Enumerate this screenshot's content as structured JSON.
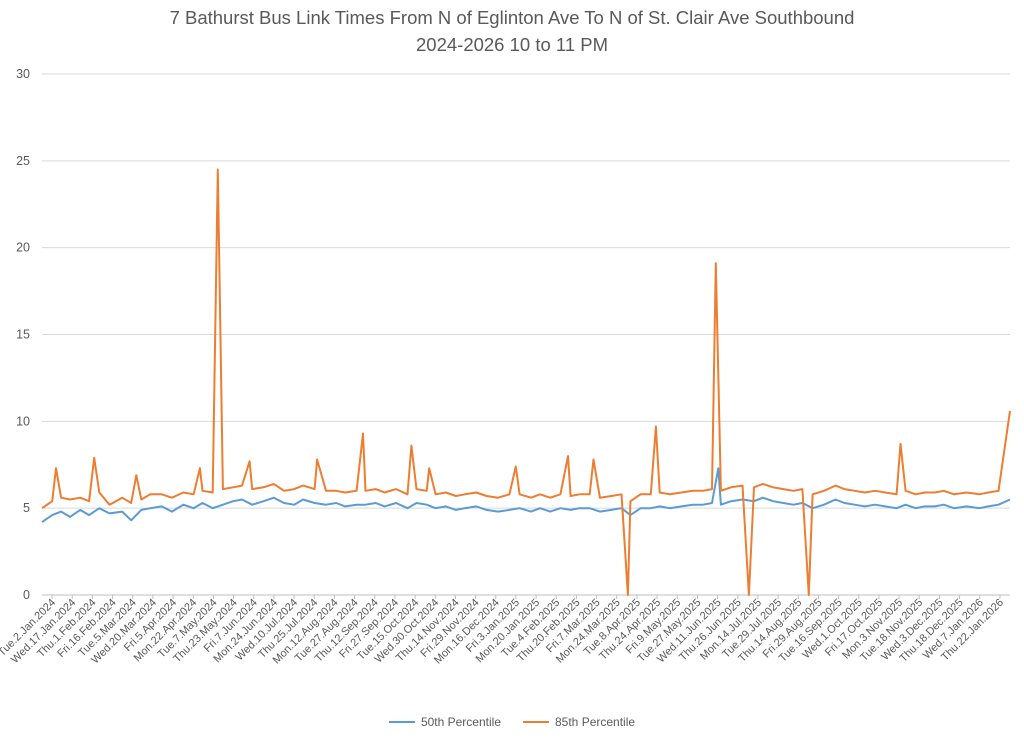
{
  "chart_data": {
    "type": "line",
    "title": "7 Bathurst Bus Link Times From N of Eglinton Ave To N of St. Clair Ave Southbound",
    "subtitle": "2024-2026 10 to 11 PM",
    "xlabel": "",
    "ylabel": "",
    "ylim": [
      0,
      30
    ],
    "yticks": [
      0,
      5,
      10,
      15,
      20,
      25,
      30
    ],
    "grid": true,
    "legend_position": "bottom",
    "x_range": [
      "2024-01-02",
      "2026-01-31"
    ],
    "x_tick_labels": [
      "Tue.2.Jan.2024",
      "Wed.17.Jan.2024",
      "Thu.1.Feb.2024",
      "Fri.16.Feb.2024",
      "Tue.5.Mar.2024",
      "Wed.20.Mar.2024",
      "Fri.5.Apr.2024",
      "Mon.22.Apr.2024",
      "Tue.7.May.2024",
      "Thu.23.May.2024",
      "Fri.7.Jun.2024",
      "Mon.24.Jun.2024",
      "Wed.10.Jul.2024",
      "Thu.25.Jul.2024",
      "Mon.12.Aug.2024",
      "Tue.27.Aug.2024",
      "Thu.12.Sep.2024",
      "Fri.27.Sep.2024",
      "Tue.15.Oct.2024",
      "Wed.30.Oct.2024",
      "Thu.14.Nov.2024",
      "Fri.29.Nov.2024",
      "Mon.16.Dec.2024",
      "Fri.3.Jan.2025",
      "Mon.20.Jan.2025",
      "Tue.4.Feb.2025",
      "Thu.20.Feb.2025",
      "Fri.7.Mar.2025",
      "Mon.24.Mar.2025",
      "Tue.8.Apr.2025",
      "Thu.24.Apr.2025",
      "Fri.9.May.2025",
      "Tue.27.May.2025",
      "Wed.11.Jun.2025",
      "Thu.26.Jun.2025",
      "Mon.14.Jul.2025",
      "Tue.29.Jul.2025",
      "Thu.14.Aug.2025",
      "Fri.29.Aug.2025",
      "Tue.16.Sep.2025",
      "Wed.1.Oct.2025",
      "Fri.17.Oct.2025",
      "Mon.3.Nov.2025",
      "Tue.18.Nov.2025",
      "Wed.3.Dec.2025",
      "Thu.18.Dec.2025",
      "Wed.7.Jan.2026",
      "Thu.22.Jan.2026"
    ],
    "series": [
      {
        "name": "50th Percentile",
        "color": "#5B9BD5",
        "points": [
          [
            "2024-01-02",
            4.2
          ],
          [
            "2024-01-10",
            4.6
          ],
          [
            "2024-01-17",
            4.8
          ],
          [
            "2024-01-24",
            4.5
          ],
          [
            "2024-02-01",
            4.9
          ],
          [
            "2024-02-08",
            4.6
          ],
          [
            "2024-02-16",
            5.0
          ],
          [
            "2024-02-24",
            4.7
          ],
          [
            "2024-03-05",
            4.8
          ],
          [
            "2024-03-12",
            4.3
          ],
          [
            "2024-03-20",
            4.9
          ],
          [
            "2024-03-27",
            5.0
          ],
          [
            "2024-04-05",
            5.1
          ],
          [
            "2024-04-13",
            4.8
          ],
          [
            "2024-04-22",
            5.2
          ],
          [
            "2024-04-30",
            5.0
          ],
          [
            "2024-05-07",
            5.3
          ],
          [
            "2024-05-15",
            5.0
          ],
          [
            "2024-05-23",
            5.2
          ],
          [
            "2024-05-31",
            5.4
          ],
          [
            "2024-06-07",
            5.5
          ],
          [
            "2024-06-15",
            5.2
          ],
          [
            "2024-06-24",
            5.4
          ],
          [
            "2024-07-02",
            5.6
          ],
          [
            "2024-07-10",
            5.3
          ],
          [
            "2024-07-18",
            5.2
          ],
          [
            "2024-07-25",
            5.5
          ],
          [
            "2024-08-03",
            5.3
          ],
          [
            "2024-08-12",
            5.2
          ],
          [
            "2024-08-20",
            5.3
          ],
          [
            "2024-08-27",
            5.1
          ],
          [
            "2024-09-05",
            5.2
          ],
          [
            "2024-09-12",
            5.2
          ],
          [
            "2024-09-20",
            5.3
          ],
          [
            "2024-09-27",
            5.1
          ],
          [
            "2024-10-06",
            5.3
          ],
          [
            "2024-10-15",
            5.0
          ],
          [
            "2024-10-22",
            5.3
          ],
          [
            "2024-10-30",
            5.2
          ],
          [
            "2024-11-06",
            5.0
          ],
          [
            "2024-11-14",
            5.1
          ],
          [
            "2024-11-22",
            4.9
          ],
          [
            "2024-11-29",
            5.0
          ],
          [
            "2024-12-08",
            5.1
          ],
          [
            "2024-12-16",
            4.9
          ],
          [
            "2024-12-25",
            4.8
          ],
          [
            "2025-01-03",
            4.9
          ],
          [
            "2025-01-11",
            5.0
          ],
          [
            "2025-01-20",
            4.8
          ],
          [
            "2025-01-27",
            5.0
          ],
          [
            "2025-02-04",
            4.8
          ],
          [
            "2025-02-12",
            5.0
          ],
          [
            "2025-02-20",
            4.9
          ],
          [
            "2025-02-27",
            5.0
          ],
          [
            "2025-03-07",
            5.0
          ],
          [
            "2025-03-15",
            4.8
          ],
          [
            "2025-03-24",
            4.9
          ],
          [
            "2025-04-01",
            5.0
          ],
          [
            "2025-04-08",
            4.6
          ],
          [
            "2025-04-16",
            5.0
          ],
          [
            "2025-04-24",
            5.0
          ],
          [
            "2025-05-01",
            5.1
          ],
          [
            "2025-05-09",
            5.0
          ],
          [
            "2025-05-18",
            5.1
          ],
          [
            "2025-05-27",
            5.2
          ],
          [
            "2025-06-04",
            5.2
          ],
          [
            "2025-06-11",
            5.3
          ],
          [
            "2025-06-16",
            7.3
          ],
          [
            "2025-06-18",
            5.2
          ],
          [
            "2025-06-26",
            5.4
          ],
          [
            "2025-07-05",
            5.5
          ],
          [
            "2025-07-14",
            5.4
          ],
          [
            "2025-07-21",
            5.6
          ],
          [
            "2025-07-29",
            5.4
          ],
          [
            "2025-08-06",
            5.3
          ],
          [
            "2025-08-14",
            5.2
          ],
          [
            "2025-08-21",
            5.3
          ],
          [
            "2025-08-29",
            5.0
          ],
          [
            "2025-09-07",
            5.2
          ],
          [
            "2025-09-16",
            5.5
          ],
          [
            "2025-09-23",
            5.3
          ],
          [
            "2025-10-01",
            5.2
          ],
          [
            "2025-10-09",
            5.1
          ],
          [
            "2025-10-17",
            5.2
          ],
          [
            "2025-10-25",
            5.1
          ],
          [
            "2025-11-03",
            5.0
          ],
          [
            "2025-11-10",
            5.2
          ],
          [
            "2025-11-18",
            5.0
          ],
          [
            "2025-11-25",
            5.1
          ],
          [
            "2025-12-03",
            5.1
          ],
          [
            "2025-12-10",
            5.2
          ],
          [
            "2025-12-18",
            5.0
          ],
          [
            "2025-12-28",
            5.1
          ],
          [
            "2026-01-07",
            5.0
          ],
          [
            "2026-01-14",
            5.1
          ],
          [
            "2026-01-22",
            5.2
          ],
          [
            "2026-01-31",
            5.5
          ]
        ]
      },
      {
        "name": "85th Percentile",
        "color": "#ED7D31",
        "points": [
          [
            "2024-01-02",
            5.0
          ],
          [
            "2024-01-10",
            5.4
          ],
          [
            "2024-01-13",
            7.3
          ],
          [
            "2024-01-17",
            5.6
          ],
          [
            "2024-01-24",
            5.5
          ],
          [
            "2024-02-01",
            5.6
          ],
          [
            "2024-02-08",
            5.4
          ],
          [
            "2024-02-12",
            7.9
          ],
          [
            "2024-02-16",
            5.9
          ],
          [
            "2024-02-24",
            5.2
          ],
          [
            "2024-03-05",
            5.6
          ],
          [
            "2024-03-12",
            5.3
          ],
          [
            "2024-03-16",
            6.9
          ],
          [
            "2024-03-20",
            5.5
          ],
          [
            "2024-03-27",
            5.8
          ],
          [
            "2024-04-05",
            5.8
          ],
          [
            "2024-04-13",
            5.6
          ],
          [
            "2024-04-22",
            5.9
          ],
          [
            "2024-04-30",
            5.8
          ],
          [
            "2024-05-05",
            7.3
          ],
          [
            "2024-05-07",
            6.0
          ],
          [
            "2024-05-15",
            5.9
          ],
          [
            "2024-05-19",
            24.5
          ],
          [
            "2024-05-23",
            6.1
          ],
          [
            "2024-05-31",
            6.2
          ],
          [
            "2024-06-07",
            6.3
          ],
          [
            "2024-06-13",
            7.7
          ],
          [
            "2024-06-15",
            6.1
          ],
          [
            "2024-06-24",
            6.2
          ],
          [
            "2024-07-02",
            6.4
          ],
          [
            "2024-07-10",
            6.0
          ],
          [
            "2024-07-18",
            6.1
          ],
          [
            "2024-07-25",
            6.3
          ],
          [
            "2024-08-03",
            6.1
          ],
          [
            "2024-08-05",
            7.8
          ],
          [
            "2024-08-12",
            6.0
          ],
          [
            "2024-08-20",
            6.0
          ],
          [
            "2024-08-27",
            5.9
          ],
          [
            "2024-09-05",
            6.0
          ],
          [
            "2024-09-10",
            9.3
          ],
          [
            "2024-09-12",
            6.0
          ],
          [
            "2024-09-20",
            6.1
          ],
          [
            "2024-09-27",
            5.9
          ],
          [
            "2024-10-06",
            6.1
          ],
          [
            "2024-10-15",
            5.8
          ],
          [
            "2024-10-18",
            8.6
          ],
          [
            "2024-10-22",
            6.1
          ],
          [
            "2024-10-30",
            6.0
          ],
          [
            "2024-11-01",
            7.3
          ],
          [
            "2024-11-06",
            5.8
          ],
          [
            "2024-11-14",
            5.9
          ],
          [
            "2024-11-22",
            5.7
          ],
          [
            "2024-11-29",
            5.8
          ],
          [
            "2024-12-08",
            5.9
          ],
          [
            "2024-12-16",
            5.7
          ],
          [
            "2024-12-25",
            5.6
          ],
          [
            "2025-01-03",
            5.8
          ],
          [
            "2025-01-08",
            7.4
          ],
          [
            "2025-01-11",
            5.8
          ],
          [
            "2025-01-20",
            5.6
          ],
          [
            "2025-01-27",
            5.8
          ],
          [
            "2025-02-04",
            5.6
          ],
          [
            "2025-02-12",
            5.8
          ],
          [
            "2025-02-18",
            8.0
          ],
          [
            "2025-02-20",
            5.7
          ],
          [
            "2025-02-27",
            5.8
          ],
          [
            "2025-03-07",
            5.8
          ],
          [
            "2025-03-10",
            7.8
          ],
          [
            "2025-03-15",
            5.6
          ],
          [
            "2025-03-24",
            5.7
          ],
          [
            "2025-04-01",
            5.8
          ],
          [
            "2025-04-06",
            0.0
          ],
          [
            "2025-04-08",
            5.4
          ],
          [
            "2025-04-16",
            5.8
          ],
          [
            "2025-04-24",
            5.8
          ],
          [
            "2025-04-28",
            9.7
          ],
          [
            "2025-05-01",
            5.9
          ],
          [
            "2025-05-09",
            5.8
          ],
          [
            "2025-05-18",
            5.9
          ],
          [
            "2025-05-27",
            6.0
          ],
          [
            "2025-06-04",
            6.0
          ],
          [
            "2025-06-11",
            6.1
          ],
          [
            "2025-06-14",
            19.1
          ],
          [
            "2025-06-18",
            6.0
          ],
          [
            "2025-06-26",
            6.2
          ],
          [
            "2025-07-05",
            6.3
          ],
          [
            "2025-07-10",
            0.0
          ],
          [
            "2025-07-14",
            6.2
          ],
          [
            "2025-07-21",
            6.4
          ],
          [
            "2025-07-29",
            6.2
          ],
          [
            "2025-08-06",
            6.1
          ],
          [
            "2025-08-14",
            6.0
          ],
          [
            "2025-08-21",
            6.1
          ],
          [
            "2025-08-26",
            0.0
          ],
          [
            "2025-08-29",
            5.8
          ],
          [
            "2025-09-07",
            6.0
          ],
          [
            "2025-09-16",
            6.3
          ],
          [
            "2025-09-23",
            6.1
          ],
          [
            "2025-10-01",
            6.0
          ],
          [
            "2025-10-09",
            5.9
          ],
          [
            "2025-10-17",
            6.0
          ],
          [
            "2025-10-25",
            5.9
          ],
          [
            "2025-11-03",
            5.8
          ],
          [
            "2025-11-06",
            8.7
          ],
          [
            "2025-11-10",
            6.0
          ],
          [
            "2025-11-18",
            5.8
          ],
          [
            "2025-11-25",
            5.9
          ],
          [
            "2025-12-03",
            5.9
          ],
          [
            "2025-12-10",
            6.0
          ],
          [
            "2025-12-18",
            5.8
          ],
          [
            "2025-12-28",
            5.9
          ],
          [
            "2026-01-07",
            5.8
          ],
          [
            "2026-01-14",
            5.9
          ],
          [
            "2026-01-22",
            6.0
          ],
          [
            "2026-01-31",
            10.6
          ]
        ]
      }
    ]
  }
}
